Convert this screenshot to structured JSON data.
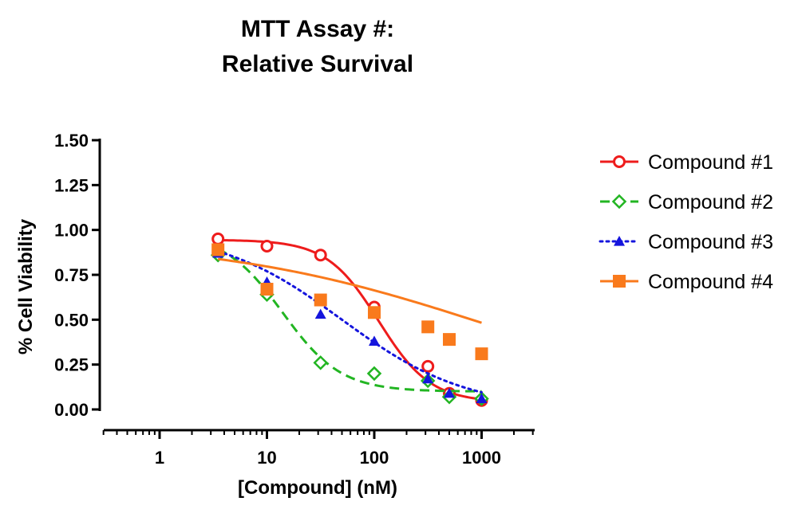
{
  "chart_data": {
    "type": "scatter",
    "title": [
      "MTT Assay #:",
      "Relative Survival"
    ],
    "xlabel": "[Compound] (nM)",
    "ylabel": "% Cell Viability",
    "xscale": "log",
    "xlim": [
      0.3,
      3000
    ],
    "ylim": [
      0,
      1.5
    ],
    "x_ticks": [
      1,
      10,
      100,
      1000
    ],
    "x_tick_labels": [
      "1",
      "10",
      "100",
      "1000"
    ],
    "y_ticks": [
      0,
      0.25,
      0.5,
      0.75,
      1.0,
      1.25,
      1.5
    ],
    "y_tick_labels": [
      "0.00",
      "0.25",
      "0.50",
      "0.75",
      "1.00",
      "1.25",
      "1.50"
    ],
    "grid": false,
    "legend_position": "right",
    "series": [
      {
        "name": "Compound #1",
        "color": "#ee1c1c",
        "marker": "circle-open",
        "line_style": "solid",
        "x": [
          3.5,
          10,
          31.6,
          100,
          316,
          500,
          1000
        ],
        "y": [
          0.95,
          0.91,
          0.86,
          0.57,
          0.24,
          0.09,
          0.05
        ],
        "fit": {
          "top": 0.945,
          "bottom": 0.04,
          "ic50": 110,
          "hill": 1.8
        }
      },
      {
        "name": "Compound #2",
        "color": "#22b522",
        "marker": "diamond-open",
        "line_style": "dashed",
        "x": [
          3.5,
          10,
          31.6,
          100,
          316,
          500,
          1000
        ],
        "y": [
          0.86,
          0.64,
          0.26,
          0.2,
          0.16,
          0.07,
          0.06
        ],
        "fit": {
          "top": 0.98,
          "bottom": 0.1,
          "ic50": 14,
          "hill": 1.6
        }
      },
      {
        "name": "Compound #3",
        "color": "#1515dd",
        "marker": "triangle-filled",
        "line_style": "dotted",
        "x": [
          3.5,
          10,
          31.6,
          100,
          316,
          500,
          1000
        ],
        "y": [
          0.87,
          0.71,
          0.53,
          0.38,
          0.17,
          0.09,
          0.06
        ],
        "fit": {
          "top": 1.0,
          "bottom": 0.0,
          "ic50": 50,
          "hill": 0.75
        }
      },
      {
        "name": "Compound #4",
        "color": "#f97a1c",
        "marker": "square-filled",
        "line_style": "solid",
        "x": [
          3.5,
          10,
          31.6,
          100,
          316,
          500,
          1000
        ],
        "y": [
          0.89,
          0.67,
          0.61,
          0.54,
          0.46,
          0.39,
          0.31
        ],
        "fit": {
          "top": 0.95,
          "bottom": 0.0,
          "ic50": 1100,
          "hill": 0.35
        }
      }
    ]
  }
}
